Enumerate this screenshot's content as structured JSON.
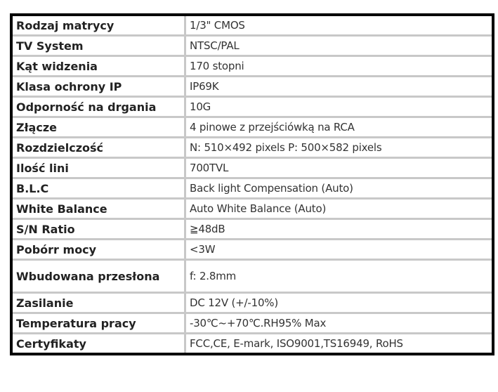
{
  "specs": [
    {
      "label": "Rodzaj matrycy",
      "value": "1/3\" CMOS"
    },
    {
      "label": "TV System",
      "value": "NTSC/PAL"
    },
    {
      "label": "Kąt widzenia",
      "value": "170 stopni"
    },
    {
      "label": "Klasa ochrony IP",
      "value": "IP69K"
    },
    {
      "label": "Odporność na drgania",
      "value": "10G"
    },
    {
      "label": "Złącze",
      "value": "4 pinowe z przejściówką na RCA"
    },
    {
      "label": "Rozdzielczość",
      "value": "N: 510×492 pixels P: 500×582 pixels"
    },
    {
      "label": "Ilość lini",
      "value": "700TVL"
    },
    {
      "label": "B.L.C",
      "value": "Back light Compensation (Auto)"
    },
    {
      "label": "White Balance",
      "value": "Auto White Balance (Auto)"
    },
    {
      "label": "S/N Ratio",
      "value": "≧48dB"
    },
    {
      "label": "Pobórr mocy",
      "value": "<3W"
    },
    {
      "label": "Wbudowana przesłona",
      "value": "f: 2.8mm"
    },
    {
      "label": "Zasilanie",
      "value": "DC 12V (+/-10%)"
    },
    {
      "label": "Temperatura pracy",
      "value": "-30℃~+70℃.RH95% Max"
    },
    {
      "label": "Certyfikaty",
      "value": "FCC,CE, E-mark,  ISO9001,TS16949, RoHS"
    }
  ]
}
